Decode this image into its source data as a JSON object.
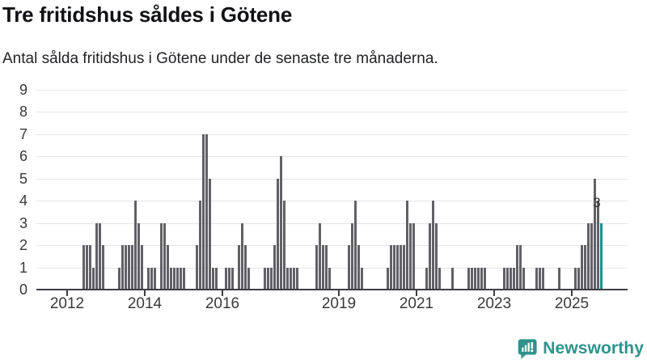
{
  "header": {
    "title": "Tre fritidshus såldes i Götene",
    "subtitle": "Antal sålda fritidshus i Götene under de senaste tre månaderna."
  },
  "chart_data": {
    "type": "bar",
    "title": "Tre fritidshus såldes i Götene",
    "xlabel": "",
    "ylabel": "",
    "ylim": [
      0,
      9
    ],
    "y_ticks": [
      0,
      1,
      2,
      3,
      4,
      5,
      6,
      7,
      8,
      9
    ],
    "grid": true,
    "legend": "none",
    "x_unit": "month-index from January 2012",
    "x_ticks": [
      {
        "label": "2012",
        "m": 0
      },
      {
        "label": "2014",
        "m": 24
      },
      {
        "label": "2016",
        "m": 48
      },
      {
        "label": "2019",
        "m": 84
      },
      {
        "label": "2021",
        "m": 108
      },
      {
        "label": "2023",
        "m": 132
      },
      {
        "label": "2025",
        "m": 156
      }
    ],
    "bars": [
      [
        5,
        2
      ],
      [
        6,
        2
      ],
      [
        7,
        2
      ],
      [
        8,
        1
      ],
      [
        9,
        3
      ],
      [
        10,
        3
      ],
      [
        11,
        2
      ],
      [
        16,
        1
      ],
      [
        17,
        2
      ],
      [
        18,
        2
      ],
      [
        19,
        2
      ],
      [
        20,
        2
      ],
      [
        21,
        4
      ],
      [
        22,
        3
      ],
      [
        23,
        2
      ],
      [
        25,
        1
      ],
      [
        26,
        1
      ],
      [
        27,
        1
      ],
      [
        29,
        3
      ],
      [
        30,
        3
      ],
      [
        31,
        2
      ],
      [
        32,
        1
      ],
      [
        33,
        1
      ],
      [
        34,
        1
      ],
      [
        35,
        1
      ],
      [
        36,
        1
      ],
      [
        40,
        2
      ],
      [
        41,
        4
      ],
      [
        42,
        7
      ],
      [
        43,
        7
      ],
      [
        44,
        5
      ],
      [
        45,
        1
      ],
      [
        46,
        1
      ],
      [
        49,
        1
      ],
      [
        50,
        1
      ],
      [
        51,
        1
      ],
      [
        53,
        2
      ],
      [
        54,
        3
      ],
      [
        55,
        2
      ],
      [
        56,
        1
      ],
      [
        61,
        1
      ],
      [
        62,
        1
      ],
      [
        63,
        1
      ],
      [
        64,
        2
      ],
      [
        65,
        5
      ],
      [
        66,
        6
      ],
      [
        67,
        4
      ],
      [
        68,
        1
      ],
      [
        69,
        1
      ],
      [
        70,
        1
      ],
      [
        71,
        1
      ],
      [
        77,
        2
      ],
      [
        78,
        3
      ],
      [
        79,
        2
      ],
      [
        80,
        2
      ],
      [
        81,
        1
      ],
      [
        87,
        2
      ],
      [
        88,
        3
      ],
      [
        89,
        4
      ],
      [
        90,
        2
      ],
      [
        91,
        1
      ],
      [
        99,
        1
      ],
      [
        100,
        2
      ],
      [
        101,
        2
      ],
      [
        102,
        2
      ],
      [
        103,
        2
      ],
      [
        104,
        2
      ],
      [
        105,
        4
      ],
      [
        106,
        3
      ],
      [
        107,
        3
      ],
      [
        111,
        1
      ],
      [
        112,
        3
      ],
      [
        113,
        4
      ],
      [
        114,
        3
      ],
      [
        115,
        1
      ],
      [
        119,
        1
      ],
      [
        124,
        1
      ],
      [
        125,
        1
      ],
      [
        126,
        1
      ],
      [
        127,
        1
      ],
      [
        128,
        1
      ],
      [
        129,
        1
      ],
      [
        135,
        1
      ],
      [
        136,
        1
      ],
      [
        137,
        1
      ],
      [
        138,
        1
      ],
      [
        139,
        2
      ],
      [
        140,
        2
      ],
      [
        141,
        1
      ],
      [
        145,
        1
      ],
      [
        146,
        1
      ],
      [
        147,
        1
      ],
      [
        152,
        1
      ],
      [
        157,
        1
      ],
      [
        158,
        1
      ],
      [
        159,
        2
      ],
      [
        160,
        2
      ],
      [
        161,
        3
      ],
      [
        162,
        3
      ],
      [
        163,
        5
      ],
      [
        164,
        4
      ],
      [
        165,
        3
      ]
    ],
    "highlight_m": 165,
    "annotation": {
      "text": "3",
      "m": 165,
      "value": 3
    },
    "colors": {
      "bar": "#616166",
      "highlight": "#14948E",
      "grid": "#E4E4E4",
      "axis": "#3E3E44",
      "labels": "#3A3A3A"
    }
  },
  "footer": {
    "brand": "Newsworthy",
    "brand_color": "#2E938C"
  }
}
